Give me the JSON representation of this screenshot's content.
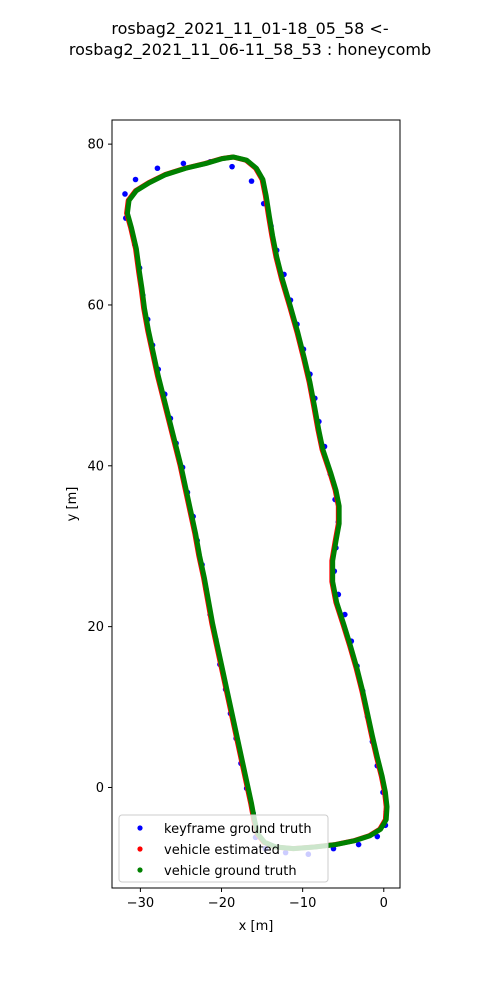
{
  "chart_data": {
    "type": "scatter",
    "title_lines": [
      "rosbag2_2021_11_01-18_05_58 <-",
      "rosbag2_2021_11_06-11_58_53 : honeycomb"
    ],
    "xlabel": "x [m]",
    "ylabel": "y [m]",
    "xlim": [
      -33.5,
      2.0
    ],
    "ylim": [
      -12.5,
      83.0
    ],
    "xticks": [
      {
        "value": -30,
        "label": "−30"
      },
      {
        "value": -20,
        "label": "−20"
      },
      {
        "value": -10,
        "label": "−10"
      },
      {
        "value": 0,
        "label": "0"
      }
    ],
    "yticks": [
      {
        "value": 0,
        "label": "0"
      },
      {
        "value": 20,
        "label": "20"
      },
      {
        "value": 40,
        "label": "40"
      },
      {
        "value": 60,
        "label": "60"
      },
      {
        "value": 80,
        "label": "80"
      }
    ],
    "grid": false,
    "legend_position": "lower-left",
    "series": [
      {
        "name": "keyframe ground truth",
        "color": "#0000ff",
        "style": "markers",
        "points": [
          [
            -31.8,
            70.8
          ],
          [
            -31.9,
            73.8
          ],
          [
            -30.6,
            75.6
          ],
          [
            -27.9,
            77.0
          ],
          [
            -24.7,
            77.6
          ],
          [
            -21.4,
            77.8
          ],
          [
            -18.7,
            77.2
          ],
          [
            -16.3,
            75.4
          ],
          [
            -14.8,
            72.6
          ],
          [
            -13.9,
            69.8
          ],
          [
            -13.2,
            66.8
          ],
          [
            -12.3,
            63.8
          ],
          [
            -11.5,
            60.6
          ],
          [
            -10.7,
            57.6
          ],
          [
            -9.9,
            54.5
          ],
          [
            -9.1,
            51.4
          ],
          [
            -8.5,
            48.4
          ],
          [
            -8.0,
            45.5
          ],
          [
            -7.3,
            42.4
          ],
          [
            -6.6,
            39.0
          ],
          [
            -6.0,
            35.8
          ],
          [
            -5.6,
            33.0
          ],
          [
            -5.9,
            29.8
          ],
          [
            -6.1,
            26.9
          ],
          [
            -5.6,
            24.0
          ],
          [
            -4.8,
            21.5
          ],
          [
            -4.0,
            18.2
          ],
          [
            -3.3,
            15.1
          ],
          [
            -2.6,
            12.0
          ],
          [
            -2.0,
            8.8
          ],
          [
            -1.4,
            5.7
          ],
          [
            -0.8,
            2.7
          ],
          [
            -0.1,
            -0.6
          ],
          [
            0.3,
            -3.0
          ],
          [
            0.2,
            -4.7
          ],
          [
            -0.8,
            -6.1
          ],
          [
            -3.1,
            -7.1
          ],
          [
            -6.2,
            -7.6
          ],
          [
            -9.3,
            -8.3
          ],
          [
            -12.1,
            -8.1
          ],
          [
            -14.6,
            -7.6
          ],
          [
            -15.8,
            -6.2
          ],
          [
            -16.1,
            -3.2
          ],
          [
            -16.9,
            -0.1
          ],
          [
            -17.6,
            3.0
          ],
          [
            -18.2,
            6.1
          ],
          [
            -18.9,
            9.2
          ],
          [
            -19.5,
            12.2
          ],
          [
            -20.2,
            15.3
          ],
          [
            -20.7,
            18.4
          ],
          [
            -21.4,
            21.5
          ],
          [
            -21.9,
            24.6
          ],
          [
            -22.4,
            27.7
          ],
          [
            -23.0,
            30.7
          ],
          [
            -23.5,
            33.7
          ],
          [
            -24.2,
            36.7
          ],
          [
            -24.8,
            39.8
          ],
          [
            -25.6,
            42.8
          ],
          [
            -26.3,
            45.9
          ],
          [
            -27.0,
            48.9
          ],
          [
            -27.8,
            52.0
          ],
          [
            -28.5,
            55.0
          ],
          [
            -29.1,
            58.2
          ],
          [
            -29.7,
            61.2
          ],
          [
            -30.1,
            64.6
          ],
          [
            -30.7,
            67.5
          ]
        ]
      },
      {
        "name": "vehicle estimated",
        "color": "#ff0000",
        "style": "path",
        "points": [
          [
            -30.2,
            64.0
          ],
          [
            -30.6,
            67.0
          ],
          [
            -31.2,
            69.6
          ],
          [
            -31.7,
            71.4
          ],
          [
            -31.5,
            73.0
          ],
          [
            -30.6,
            74.2
          ],
          [
            -29.0,
            75.2
          ],
          [
            -27.0,
            76.2
          ],
          [
            -24.5,
            77.0
          ],
          [
            -22.0,
            77.6
          ],
          [
            -20.0,
            78.2
          ],
          [
            -18.6,
            78.4
          ],
          [
            -17.0,
            78.0
          ],
          [
            -15.8,
            77.0
          ],
          [
            -15.0,
            75.6
          ],
          [
            -14.6,
            73.6
          ],
          [
            -14.2,
            71.0
          ],
          [
            -13.8,
            68.6
          ],
          [
            -13.3,
            66.0
          ],
          [
            -12.6,
            63.2
          ],
          [
            -11.6,
            59.8
          ],
          [
            -10.7,
            56.6
          ],
          [
            -9.9,
            53.4
          ],
          [
            -9.2,
            50.4
          ],
          [
            -8.6,
            47.2
          ],
          [
            -8.1,
            44.4
          ],
          [
            -7.6,
            42.0
          ],
          [
            -6.6,
            39.0
          ],
          [
            -6.0,
            37.0
          ],
          [
            -5.6,
            35.0
          ],
          [
            -5.6,
            32.8
          ],
          [
            -6.0,
            30.6
          ],
          [
            -6.4,
            28.2
          ],
          [
            -6.4,
            25.6
          ],
          [
            -5.9,
            23.0
          ],
          [
            -5.0,
            20.2
          ],
          [
            -4.2,
            17.6
          ],
          [
            -3.4,
            14.8
          ],
          [
            -2.7,
            12.0
          ],
          [
            -2.1,
            9.2
          ],
          [
            -1.5,
            6.4
          ],
          [
            -0.9,
            3.8
          ],
          [
            -0.3,
            1.4
          ],
          [
            0.1,
            -0.6
          ],
          [
            0.3,
            -2.4
          ],
          [
            0.2,
            -4.0
          ],
          [
            -0.5,
            -5.2
          ],
          [
            -1.8,
            -6.0
          ],
          [
            -3.6,
            -6.6
          ],
          [
            -6.0,
            -7.1
          ],
          [
            -8.6,
            -7.4
          ],
          [
            -11.2,
            -7.6
          ],
          [
            -13.4,
            -7.4
          ],
          [
            -14.8,
            -6.8
          ],
          [
            -15.6,
            -5.8
          ],
          [
            -16.0,
            -4.2
          ],
          [
            -16.4,
            -2.0
          ],
          [
            -17.0,
            0.8
          ],
          [
            -17.6,
            3.6
          ],
          [
            -18.2,
            6.4
          ],
          [
            -18.8,
            9.2
          ],
          [
            -19.4,
            12.0
          ],
          [
            -20.0,
            14.8
          ],
          [
            -20.6,
            17.6
          ],
          [
            -21.2,
            20.4
          ],
          [
            -21.7,
            23.2
          ],
          [
            -22.2,
            26.0
          ],
          [
            -22.8,
            28.8
          ],
          [
            -23.3,
            31.6
          ],
          [
            -23.9,
            34.4
          ],
          [
            -24.5,
            37.2
          ],
          [
            -25.1,
            40.0
          ],
          [
            -25.8,
            42.8
          ],
          [
            -26.5,
            45.6
          ],
          [
            -27.2,
            48.4
          ],
          [
            -27.9,
            51.2
          ],
          [
            -28.5,
            54.0
          ],
          [
            -29.1,
            56.8
          ],
          [
            -29.6,
            59.6
          ],
          [
            -29.9,
            62.0
          ],
          [
            -30.2,
            64.0
          ]
        ]
      },
      {
        "name": "vehicle ground truth",
        "color": "#008000",
        "style": "path",
        "points": [
          [
            -30.1,
            64.0
          ],
          [
            -30.5,
            67.0
          ],
          [
            -31.1,
            69.6
          ],
          [
            -31.6,
            71.4
          ],
          [
            -31.4,
            73.0
          ],
          [
            -30.5,
            74.2
          ],
          [
            -28.9,
            75.2
          ],
          [
            -26.9,
            76.2
          ],
          [
            -24.4,
            77.0
          ],
          [
            -21.9,
            77.6
          ],
          [
            -19.9,
            78.2
          ],
          [
            -18.5,
            78.4
          ],
          [
            -16.9,
            78.0
          ],
          [
            -15.7,
            77.0
          ],
          [
            -14.9,
            75.6
          ],
          [
            -14.5,
            73.6
          ],
          [
            -14.1,
            71.0
          ],
          [
            -13.7,
            68.6
          ],
          [
            -13.2,
            66.0
          ],
          [
            -12.5,
            63.2
          ],
          [
            -11.5,
            59.8
          ],
          [
            -10.6,
            56.6
          ],
          [
            -9.8,
            53.4
          ],
          [
            -9.1,
            50.4
          ],
          [
            -8.5,
            47.2
          ],
          [
            -8.0,
            44.4
          ],
          [
            -7.5,
            42.0
          ],
          [
            -6.5,
            39.0
          ],
          [
            -5.9,
            37.0
          ],
          [
            -5.5,
            35.0
          ],
          [
            -5.5,
            32.8
          ],
          [
            -5.9,
            30.6
          ],
          [
            -6.3,
            28.2
          ],
          [
            -6.3,
            25.6
          ],
          [
            -5.8,
            23.0
          ],
          [
            -4.9,
            20.2
          ],
          [
            -4.1,
            17.6
          ],
          [
            -3.3,
            14.8
          ],
          [
            -2.6,
            12.0
          ],
          [
            -2.0,
            9.2
          ],
          [
            -1.4,
            6.4
          ],
          [
            -0.8,
            3.8
          ],
          [
            -0.2,
            1.4
          ],
          [
            0.2,
            -0.6
          ],
          [
            0.4,
            -2.4
          ],
          [
            0.3,
            -4.0
          ],
          [
            -0.4,
            -5.2
          ],
          [
            -1.7,
            -6.0
          ],
          [
            -3.5,
            -6.6
          ],
          [
            -5.9,
            -7.1
          ],
          [
            -8.5,
            -7.4
          ],
          [
            -11.1,
            -7.6
          ],
          [
            -13.3,
            -7.4
          ],
          [
            -14.7,
            -6.8
          ],
          [
            -15.5,
            -5.8
          ],
          [
            -15.9,
            -4.2
          ],
          [
            -16.3,
            -2.0
          ],
          [
            -16.9,
            0.8
          ],
          [
            -17.5,
            3.6
          ],
          [
            -18.1,
            6.4
          ],
          [
            -18.7,
            9.2
          ],
          [
            -19.3,
            12.0
          ],
          [
            -19.9,
            14.8
          ],
          [
            -20.5,
            17.6
          ],
          [
            -21.1,
            20.4
          ],
          [
            -21.6,
            23.2
          ],
          [
            -22.1,
            26.0
          ],
          [
            -22.7,
            28.8
          ],
          [
            -23.2,
            31.6
          ],
          [
            -23.8,
            34.4
          ],
          [
            -24.4,
            37.2
          ],
          [
            -25.0,
            40.0
          ],
          [
            -25.7,
            42.8
          ],
          [
            -26.4,
            45.6
          ],
          [
            -27.1,
            48.4
          ],
          [
            -27.8,
            51.2
          ],
          [
            -28.4,
            54.0
          ],
          [
            -29.0,
            56.8
          ],
          [
            -29.5,
            59.6
          ],
          [
            -29.8,
            62.0
          ],
          [
            -30.1,
            64.0
          ]
        ]
      }
    ]
  }
}
